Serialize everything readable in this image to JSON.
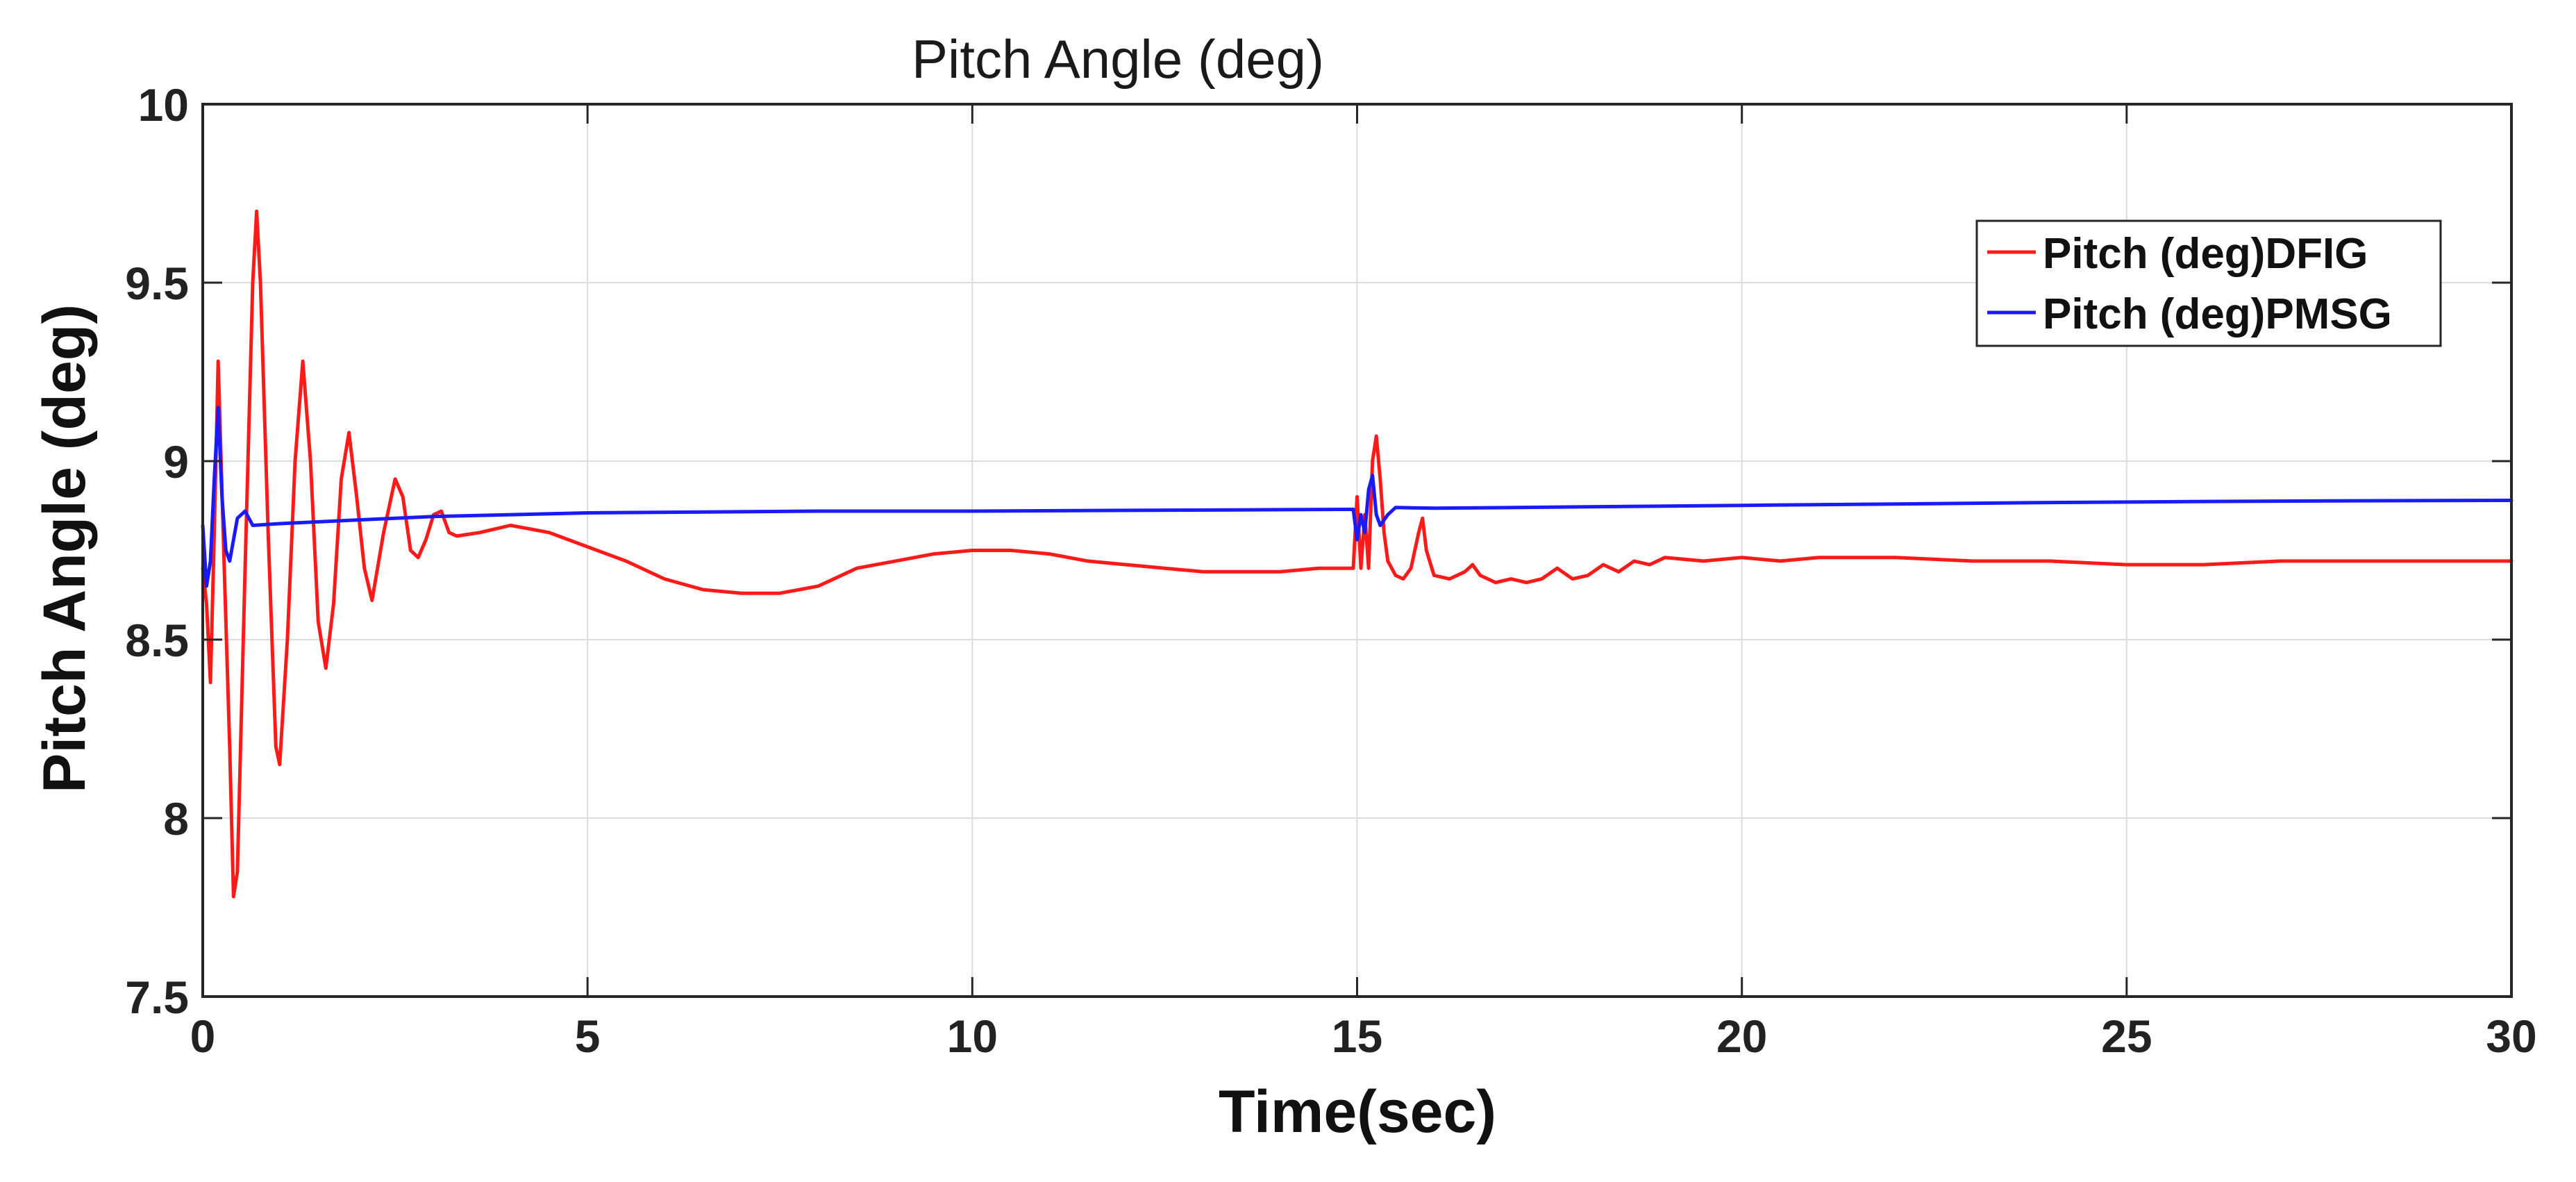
{
  "chart_data": {
    "type": "line",
    "title": "Pitch Angle (deg)",
    "xlabel": "Time(sec)",
    "ylabel": "Pitch Angle (deg)",
    "xlim": [
      0,
      30
    ],
    "ylim": [
      7.5,
      10
    ],
    "xticks": [
      0,
      5,
      10,
      15,
      20,
      25,
      30
    ],
    "yticks": [
      7.5,
      8,
      8.5,
      9,
      9.5,
      10
    ],
    "xtick_labels": [
      "0",
      "5",
      "10",
      "15",
      "20",
      "25",
      "30"
    ],
    "ytick_labels": [
      "7.5",
      "8",
      "8.5",
      "9",
      "9.5",
      "10"
    ],
    "grid": true,
    "legend_position": "top-right",
    "series": [
      {
        "name": "Pitch (deg)DFIG",
        "color": "#ff1a1a",
        "x": [
          0,
          0.05,
          0.1,
          0.15,
          0.2,
          0.28,
          0.35,
          0.4,
          0.45,
          0.55,
          0.65,
          0.7,
          0.75,
          0.85,
          0.95,
          1.0,
          1.1,
          1.2,
          1.3,
          1.4,
          1.5,
          1.6,
          1.7,
          1.8,
          1.9,
          2.0,
          2.1,
          2.2,
          2.35,
          2.5,
          2.6,
          2.7,
          2.8,
          2.9,
          3.0,
          3.1,
          3.2,
          3.3,
          3.6,
          4.0,
          4.5,
          5.0,
          5.5,
          6.0,
          6.5,
          7.0,
          7.5,
          8.0,
          8.5,
          9.0,
          9.5,
          10.0,
          10.5,
          11.0,
          11.5,
          12.0,
          12.5,
          13.0,
          13.5,
          14.0,
          14.5,
          14.95,
          15.0,
          15.05,
          15.1,
          15.15,
          15.2,
          15.25,
          15.3,
          15.35,
          15.4,
          15.5,
          15.6,
          15.7,
          15.8,
          15.85,
          15.9,
          16.0,
          16.2,
          16.4,
          16.5,
          16.6,
          16.8,
          17.0,
          17.2,
          17.4,
          17.6,
          17.8,
          18.0,
          18.2,
          18.4,
          18.6,
          18.8,
          19.0,
          19.5,
          20.0,
          20.5,
          21.0,
          22.0,
          23.0,
          24.0,
          25.0,
          26.0,
          27.0,
          28.0,
          29.0,
          30.0
        ],
        "values": [
          8.7,
          8.6,
          8.38,
          8.8,
          9.28,
          8.7,
          8.2,
          7.78,
          7.85,
          8.7,
          9.5,
          9.7,
          9.5,
          8.8,
          8.2,
          8.15,
          8.5,
          9.0,
          9.28,
          9.0,
          8.55,
          8.42,
          8.6,
          8.95,
          9.08,
          8.9,
          8.7,
          8.61,
          8.8,
          8.95,
          8.9,
          8.75,
          8.73,
          8.78,
          8.85,
          8.86,
          8.8,
          8.79,
          8.8,
          8.82,
          8.8,
          8.76,
          8.72,
          8.67,
          8.64,
          8.63,
          8.63,
          8.65,
          8.7,
          8.72,
          8.74,
          8.75,
          8.75,
          8.74,
          8.72,
          8.71,
          8.7,
          8.69,
          8.69,
          8.69,
          8.7,
          8.7,
          8.9,
          8.7,
          8.85,
          8.7,
          9.0,
          9.07,
          8.95,
          8.8,
          8.72,
          8.68,
          8.67,
          8.7,
          8.8,
          8.84,
          8.75,
          8.68,
          8.67,
          8.69,
          8.71,
          8.68,
          8.66,
          8.67,
          8.66,
          8.67,
          8.7,
          8.67,
          8.68,
          8.71,
          8.69,
          8.72,
          8.71,
          8.73,
          8.72,
          8.73,
          8.72,
          8.73,
          8.73,
          8.72,
          8.72,
          8.71,
          8.71,
          8.72,
          8.72,
          8.72,
          8.72
        ]
      },
      {
        "name": "Pitch (deg)PMSG",
        "color": "#1a1aff",
        "x": [
          0,
          0.05,
          0.1,
          0.15,
          0.2,
          0.25,
          0.3,
          0.35,
          0.45,
          0.55,
          0.65,
          1.0,
          2.0,
          3.0,
          5.0,
          8.0,
          10.0,
          12.0,
          14.0,
          14.95,
          15.0,
          15.05,
          15.1,
          15.15,
          15.2,
          15.25,
          15.3,
          15.4,
          15.5,
          16.0,
          18.0,
          20.0,
          22.0,
          24.0,
          26.0,
          28.0,
          30.0
        ],
        "values": [
          8.82,
          8.65,
          8.72,
          8.95,
          9.15,
          8.9,
          8.75,
          8.72,
          8.84,
          8.86,
          8.82,
          8.825,
          8.835,
          8.845,
          8.855,
          8.86,
          8.86,
          8.862,
          8.864,
          8.865,
          8.78,
          8.85,
          8.8,
          8.92,
          8.96,
          8.85,
          8.82,
          8.85,
          8.87,
          8.868,
          8.872,
          8.876,
          8.88,
          8.884,
          8.887,
          8.889,
          8.89
        ]
      }
    ]
  }
}
